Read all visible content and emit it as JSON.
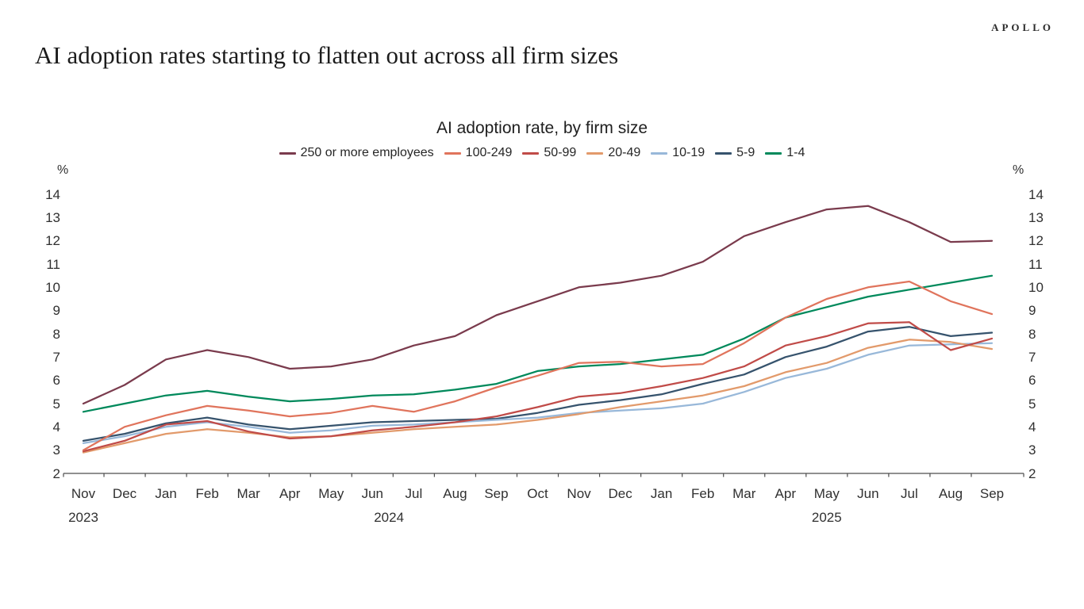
{
  "brand": {
    "logo": "APOLLO"
  },
  "page_title": "AI adoption rates starting to flatten out across all firm sizes",
  "chart_data": {
    "type": "line",
    "title": "AI adoption rate, by firm size",
    "unit_label": "%",
    "ylim": [
      2,
      14
    ],
    "yticks": [
      14,
      13,
      12,
      11,
      10,
      9,
      8,
      7,
      6,
      5,
      4,
      3,
      2
    ],
    "grid": false,
    "legend_position": "top-center",
    "axis_color": "#4d4d4d",
    "categories": [
      "Nov",
      "Dec",
      "Jan",
      "Feb",
      "Mar",
      "Apr",
      "May",
      "Jun",
      "Jul",
      "Aug",
      "Sep",
      "Oct",
      "Nov",
      "Dec",
      "Jan",
      "Feb",
      "Mar",
      "Apr",
      "May",
      "Jun",
      "Jul",
      "Aug",
      "Sep"
    ],
    "years": [
      {
        "label": "2023",
        "month_index": 0
      },
      {
        "label": "2024",
        "month_index": 7.4
      },
      {
        "label": "2025",
        "month_index": 18
      }
    ],
    "series": [
      {
        "name": "250 or more employees",
        "color": "#7A3B4D",
        "values": [
          5.0,
          5.8,
          6.9,
          7.3,
          7.0,
          6.5,
          6.6,
          6.9,
          7.5,
          7.9,
          8.8,
          9.4,
          10.0,
          10.2,
          10.5,
          11.1,
          12.2,
          12.8,
          13.35,
          13.5,
          12.8,
          11.95,
          12.0
        ]
      },
      {
        "name": "100-249",
        "color": "#E0745C",
        "values": [
          3.0,
          4.0,
          4.5,
          4.9,
          4.7,
          4.45,
          4.6,
          4.9,
          4.65,
          5.1,
          5.7,
          6.2,
          6.75,
          6.8,
          6.6,
          6.7,
          7.6,
          8.7,
          9.5,
          10.0,
          10.25,
          9.4,
          8.85
        ]
      },
      {
        "name": "50-99",
        "color": "#C04B48",
        "values": [
          2.95,
          3.4,
          4.1,
          4.25,
          3.8,
          3.5,
          3.6,
          3.85,
          4.0,
          4.2,
          4.45,
          4.85,
          5.3,
          5.45,
          5.75,
          6.1,
          6.6,
          7.5,
          7.9,
          8.45,
          8.5,
          7.3,
          7.8
        ]
      },
      {
        "name": "20-49",
        "color": "#E29A6B",
        "values": [
          2.9,
          3.3,
          3.7,
          3.9,
          3.75,
          3.55,
          3.6,
          3.75,
          3.9,
          4.0,
          4.1,
          4.3,
          4.55,
          4.85,
          5.1,
          5.35,
          5.75,
          6.35,
          6.75,
          7.4,
          7.75,
          7.65,
          7.35
        ]
      },
      {
        "name": "10-19",
        "color": "#98B8D9",
        "values": [
          3.3,
          3.6,
          4.0,
          4.2,
          4.0,
          3.75,
          3.85,
          4.05,
          4.1,
          4.2,
          4.3,
          4.4,
          4.6,
          4.7,
          4.8,
          5.0,
          5.5,
          6.1,
          6.5,
          7.1,
          7.5,
          7.55,
          7.6
        ]
      },
      {
        "name": "5-9",
        "color": "#36536D",
        "values": [
          3.4,
          3.7,
          4.15,
          4.4,
          4.1,
          3.9,
          4.05,
          4.2,
          4.25,
          4.3,
          4.35,
          4.6,
          4.95,
          5.15,
          5.4,
          5.85,
          6.25,
          7.0,
          7.45,
          8.1,
          8.3,
          7.9,
          8.05
        ]
      },
      {
        "name": "1-4",
        "color": "#00895B",
        "values": [
          4.65,
          5.0,
          5.35,
          5.55,
          5.3,
          5.1,
          5.2,
          5.35,
          5.4,
          5.6,
          5.85,
          6.4,
          6.6,
          6.7,
          6.9,
          7.1,
          7.8,
          8.7,
          9.15,
          9.6,
          9.9,
          10.2,
          10.5
        ]
      }
    ]
  }
}
